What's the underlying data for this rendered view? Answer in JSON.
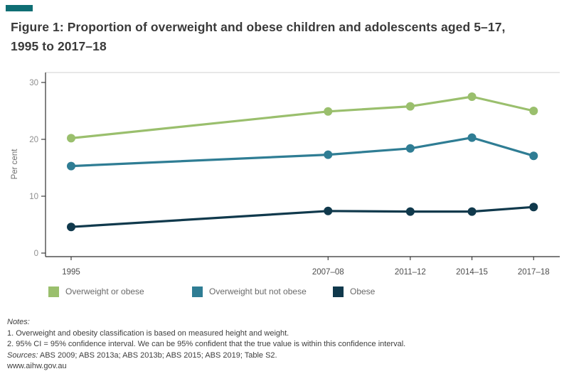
{
  "accent_color": "#0f6e74",
  "title": {
    "line1": "Figure 1: Proportion of overweight and obese children and adolescents aged 5–17,",
    "line2": "1995 to 2017–18"
  },
  "chart_data": {
    "type": "line",
    "title": "",
    "xlabel": "",
    "ylabel": "Per cent",
    "ylim": [
      0,
      30
    ],
    "yticks": [
      0,
      10,
      20,
      30
    ],
    "grid": "top panel border only, no horizontal gridlines",
    "legend_position": "bottom-left",
    "categories": [
      "1995",
      "2007–08",
      "2011–12",
      "2014–15",
      "2017–18"
    ],
    "x_years": [
      1995,
      2007.5,
      2011.5,
      2014.5,
      2017.5
    ],
    "series": [
      {
        "name": "Overweight or obese",
        "color": "#9abf6d",
        "values": [
          20.2,
          24.9,
          25.8,
          27.5,
          25.0
        ]
      },
      {
        "name": "Overweight but not obese",
        "color": "#2f7d94",
        "values": [
          15.3,
          17.3,
          18.4,
          20.3,
          17.1
        ]
      },
      {
        "name": "Obese",
        "color": "#10394c",
        "values": [
          4.6,
          7.4,
          7.3,
          7.3,
          8.1
        ]
      }
    ],
    "axis_colors": {
      "axis_line": "#2f2f2f",
      "gridline": "#d9d9d9",
      "y_tick_label": "#8f8f8f",
      "x_tick_label": "#4d4d4d",
      "y_axis_title": "#6f6f6f"
    }
  },
  "notes": {
    "lines": [
      {
        "lead": "Notes:",
        "rest": ""
      },
      {
        "lead": "",
        "rest": "1. Overweight and obesity classification is based on measured height and weight."
      },
      {
        "lead": "",
        "rest": "2. 95% CI = 95% confidence interval. We can be 95% confident that the true value is within this confidence interval."
      },
      {
        "lead": "Sources:",
        "rest": " ABS 2009; ABS 2013a; ABS 2013b; ABS 2015; ABS 2019; Table S2."
      },
      {
        "lead": "",
        "rest": "www.aihw.gov.au"
      }
    ]
  }
}
